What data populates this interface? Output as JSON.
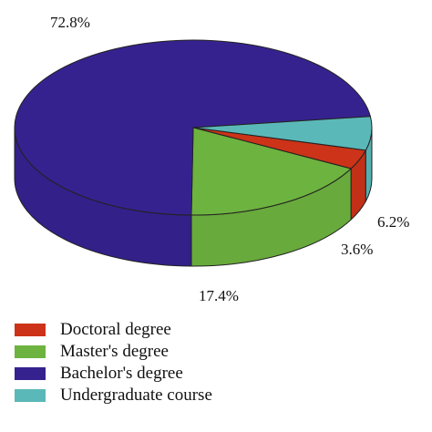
{
  "chart_data": {
    "type": "pie",
    "title": "",
    "three_d": true,
    "legend_position": "bottom-left",
    "categories": [
      "Doctoral degree",
      "Master's degree",
      "Bachelor's degree",
      "Undergraduate course"
    ],
    "values": [
      3.6,
      17.4,
      72.8,
      6.2
    ],
    "labels": [
      "3.6%",
      "17.4%",
      "72.8%",
      "6.2%"
    ],
    "colors": [
      "#cc3318",
      "#6db33f",
      "#36228f",
      "#5bb8b8"
    ]
  },
  "legend": {
    "items": [
      {
        "label": "Doctoral degree",
        "color": "#cc3318"
      },
      {
        "label": "Master's degree",
        "color": "#6db33f"
      },
      {
        "label": "Bachelor's degree",
        "color": "#36228f"
      },
      {
        "label": "Undergraduate course",
        "color": "#5bb8b8"
      }
    ]
  }
}
